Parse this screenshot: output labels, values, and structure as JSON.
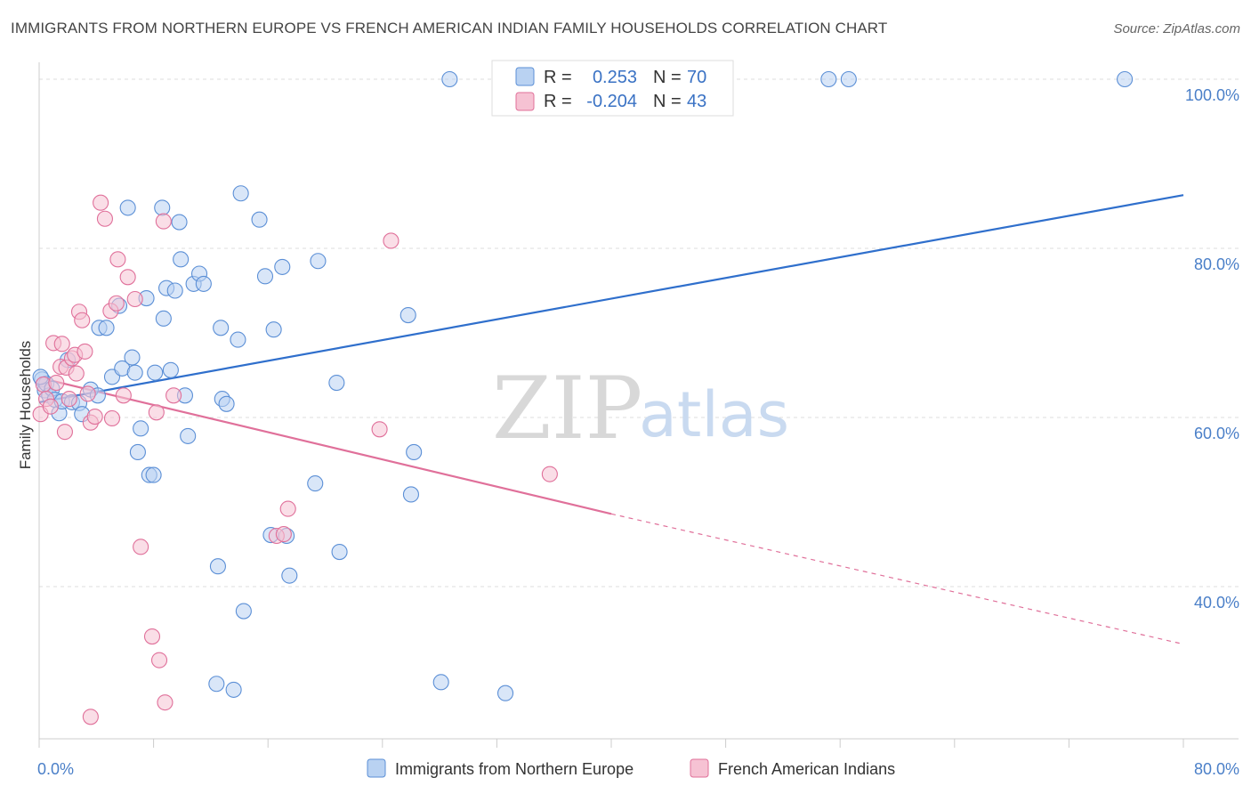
{
  "title": "IMMIGRANTS FROM NORTHERN EUROPE VS FRENCH AMERICAN INDIAN FAMILY HOUSEHOLDS CORRELATION CHART",
  "source": "Source: ZipAtlas.com",
  "watermark": {
    "zip": "ZIP",
    "atlas": "atlas"
  },
  "colors": {
    "blue": "#5b8fd6",
    "blue_fill": "#b9d2f2",
    "pink": "#e0709a",
    "pink_fill": "#f6c2d3",
    "tick": "#4a7fc8"
  },
  "legend_top": {
    "rows": [
      {
        "r_label": "R =",
        "r_value": "0.253",
        "n_label": "N =",
        "n_value": "70"
      },
      {
        "r_label": "R =",
        "r_value": "-0.204",
        "n_label": "N =",
        "n_value": "43"
      }
    ]
  },
  "chart_data": {
    "type": "scatter",
    "title": "IMMIGRANTS FROM NORTHERN EUROPE VS FRENCH AMERICAN INDIAN FAMILY HOUSEHOLDS CORRELATION CHART",
    "xlabel": "",
    "ylabel": "Family Households",
    "xlim": [
      0,
      80
    ],
    "ylim": [
      22,
      102
    ],
    "x_tick_labels": [
      "0.0%",
      "80.0%"
    ],
    "y_ticks": [
      40,
      60,
      80,
      100
    ],
    "y_tick_labels": [
      "40.0%",
      "60.0%",
      "80.0%",
      "100.0%"
    ],
    "grid": true,
    "legend_position": "bottom",
    "series": [
      {
        "name": "Immigrants from Northern Europe",
        "color": "#5b8fd6",
        "r": 0.253,
        "n": 70,
        "trend": {
          "x": [
            0,
            80
          ],
          "y": [
            61.8,
            86.3
          ]
        },
        "points": [
          [
            0.2,
            64.5
          ],
          [
            0.4,
            63.2
          ],
          [
            0.5,
            64.0
          ],
          [
            0.7,
            62.6
          ],
          [
            0.9,
            63.4
          ],
          [
            1.1,
            62.1
          ],
          [
            1.4,
            60.5
          ],
          [
            1.6,
            61.9
          ],
          [
            2.0,
            66.8
          ],
          [
            2.3,
            61.8
          ],
          [
            2.8,
            61.7
          ],
          [
            3.0,
            60.4
          ],
          [
            3.6,
            63.3
          ],
          [
            4.1,
            62.6
          ],
          [
            4.2,
            70.6
          ],
          [
            4.7,
            70.6
          ],
          [
            5.1,
            64.8
          ],
          [
            5.6,
            73.2
          ],
          [
            5.8,
            65.8
          ],
          [
            6.2,
            84.8
          ],
          [
            6.5,
            67.1
          ],
          [
            6.7,
            65.3
          ],
          [
            6.9,
            55.9
          ],
          [
            7.1,
            58.7
          ],
          [
            7.5,
            74.1
          ],
          [
            7.7,
            53.2
          ],
          [
            8.0,
            53.2
          ],
          [
            8.1,
            65.3
          ],
          [
            8.6,
            84.8
          ],
          [
            8.7,
            71.7
          ],
          [
            8.9,
            75.3
          ],
          [
            9.2,
            65.6
          ],
          [
            9.5,
            75.0
          ],
          [
            9.8,
            83.1
          ],
          [
            9.9,
            78.7
          ],
          [
            10.2,
            62.6
          ],
          [
            10.4,
            57.8
          ],
          [
            10.8,
            75.8
          ],
          [
            11.2,
            77.0
          ],
          [
            11.5,
            75.8
          ],
          [
            12.4,
            28.5
          ],
          [
            12.5,
            42.4
          ],
          [
            12.7,
            70.6
          ],
          [
            12.8,
            62.2
          ],
          [
            13.1,
            61.6
          ],
          [
            13.6,
            27.8
          ],
          [
            13.9,
            69.2
          ],
          [
            14.1,
            86.5
          ],
          [
            14.3,
            37.1
          ],
          [
            15.4,
            83.4
          ],
          [
            15.8,
            76.7
          ],
          [
            16.2,
            46.1
          ],
          [
            16.4,
            70.4
          ],
          [
            17.0,
            77.8
          ],
          [
            17.3,
            46.0
          ],
          [
            17.5,
            41.3
          ],
          [
            19.3,
            52.2
          ],
          [
            19.5,
            78.5
          ],
          [
            20.8,
            64.1
          ],
          [
            21.0,
            44.1
          ],
          [
            25.8,
            72.1
          ],
          [
            26.0,
            50.9
          ],
          [
            26.2,
            55.9
          ],
          [
            28.1,
            28.7
          ],
          [
            28.7,
            100.0
          ],
          [
            32.6,
            27.4
          ],
          [
            55.2,
            100.0
          ],
          [
            56.6,
            100.0
          ],
          [
            75.9,
            100.0
          ],
          [
            0.1,
            64.8
          ]
        ]
      },
      {
        "name": "French American Indians",
        "color": "#e0709a",
        "r": -0.204,
        "n": 43,
        "trend": {
          "x": [
            0,
            40
          ],
          "y": [
            64.7,
            48.6
          ]
        },
        "trend_dashed": {
          "x": [
            40,
            80
          ],
          "y": [
            48.6,
            33.2
          ]
        },
        "points": [
          [
            0.1,
            60.4
          ],
          [
            0.3,
            63.9
          ],
          [
            0.5,
            62.2
          ],
          [
            0.8,
            61.3
          ],
          [
            1.0,
            68.8
          ],
          [
            1.2,
            64.1
          ],
          [
            1.5,
            66.0
          ],
          [
            1.6,
            68.7
          ],
          [
            1.8,
            58.3
          ],
          [
            1.9,
            65.9
          ],
          [
            2.1,
            62.2
          ],
          [
            2.3,
            67.0
          ],
          [
            2.5,
            67.4
          ],
          [
            2.6,
            65.2
          ],
          [
            2.8,
            72.5
          ],
          [
            3.0,
            71.5
          ],
          [
            3.2,
            67.8
          ],
          [
            3.4,
            62.8
          ],
          [
            3.6,
            59.4
          ],
          [
            3.9,
            60.1
          ],
          [
            4.3,
            85.4
          ],
          [
            4.6,
            83.5
          ],
          [
            5.0,
            72.6
          ],
          [
            5.1,
            59.9
          ],
          [
            5.4,
            73.5
          ],
          [
            5.5,
            78.7
          ],
          [
            5.9,
            62.6
          ],
          [
            6.2,
            76.6
          ],
          [
            6.7,
            74.0
          ],
          [
            7.1,
            44.7
          ],
          [
            7.9,
            34.1
          ],
          [
            8.2,
            60.6
          ],
          [
            8.4,
            31.3
          ],
          [
            8.7,
            83.2
          ],
          [
            8.8,
            26.3
          ],
          [
            9.4,
            62.6
          ],
          [
            3.6,
            24.6
          ],
          [
            16.6,
            46.0
          ],
          [
            17.4,
            49.2
          ],
          [
            17.1,
            46.2
          ],
          [
            23.8,
            58.6
          ],
          [
            24.6,
            80.9
          ],
          [
            35.7,
            53.3
          ]
        ]
      }
    ]
  },
  "legend_bottom": {
    "items": [
      {
        "label": "Immigrants from Northern Europe"
      },
      {
        "label": "French American Indians"
      }
    ]
  }
}
